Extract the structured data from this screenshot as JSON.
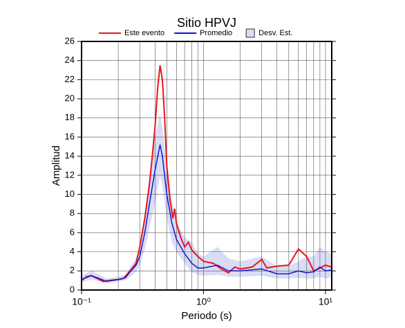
{
  "chart_data": {
    "type": "line",
    "title": "Sitio HPVJ",
    "xlabel": "Periodo (s)",
    "ylabel": "Amplitud",
    "xscale": "log",
    "grid": true,
    "xlim": [
      0.1,
      11.25
    ],
    "ylim": [
      0,
      26
    ],
    "xticks": [
      {
        "value": 0.1,
        "label": "10⁻¹"
      },
      {
        "value": 1,
        "label": "10⁰"
      },
      {
        "value": 10,
        "label": "10¹"
      }
    ],
    "xgrid_minor": [
      0.2,
      0.3,
      0.4,
      0.5,
      0.6,
      0.7,
      0.8,
      0.9,
      2,
      3,
      4,
      5,
      6,
      7,
      8,
      9
    ],
    "yticks": [
      0,
      2,
      4,
      6,
      8,
      10,
      12,
      14,
      16,
      18,
      20,
      22,
      24,
      26
    ],
    "band": {
      "name": "Desv. Est.",
      "color": "#d8dcf5",
      "x": [
        0.1,
        0.12,
        0.14,
        0.16,
        0.2,
        0.23,
        0.25,
        0.28,
        0.3,
        0.33,
        0.36,
        0.4,
        0.44,
        0.46,
        0.5,
        0.55,
        0.6,
        0.7,
        0.8,
        0.9,
        1.0,
        1.3,
        1.6,
        2,
        3,
        4,
        5,
        6,
        7,
        8,
        9,
        10,
        11.25
      ],
      "upper": [
        1.5,
        2.0,
        1.6,
        1.2,
        1.4,
        1.6,
        2.4,
        3.4,
        4.5,
        8,
        12,
        16,
        18.5,
        17,
        13,
        9.5,
        7,
        5.5,
        5,
        3.8,
        3.5,
        4.5,
        3.3,
        3,
        3.5,
        2.5,
        2.5,
        3,
        3.5,
        3.5,
        4.5,
        4,
        3.8
      ],
      "lower": [
        0.8,
        1.1,
        0.9,
        0.7,
        0.9,
        1.0,
        1.4,
        1.9,
        2.6,
        4.2,
        6.5,
        9,
        12,
        11,
        7.5,
        5,
        4,
        2.8,
        1.9,
        1.6,
        1.5,
        1.6,
        1.4,
        1.4,
        1.5,
        1.2,
        1.2,
        1.3,
        1.2,
        1.2,
        1.4,
        1.2,
        1.4
      ]
    },
    "series": [
      {
        "name": "Este evento",
        "color": "#e8141b",
        "x": [
          0.1,
          0.11,
          0.12,
          0.13,
          0.15,
          0.17,
          0.2,
          0.22,
          0.25,
          0.28,
          0.3,
          0.33,
          0.36,
          0.38,
          0.4,
          0.42,
          0.44,
          0.46,
          0.48,
          0.5,
          0.53,
          0.56,
          0.58,
          0.6,
          0.65,
          0.7,
          0.75,
          0.8,
          0.9,
          1.0,
          1.2,
          1.4,
          1.6,
          1.8,
          2.0,
          2.5,
          3.0,
          3.3,
          4,
          5,
          6,
          7,
          8,
          9,
          10,
          11.25
        ],
        "values": [
          1.0,
          1.4,
          1.5,
          1.3,
          0.9,
          1.0,
          1.1,
          1.2,
          2.0,
          2.8,
          4.5,
          7.5,
          11,
          14,
          17,
          21,
          23.5,
          22,
          18,
          13,
          9.5,
          7.5,
          8.5,
          7,
          5.5,
          4.5,
          5,
          4.2,
          3.5,
          3,
          2.8,
          2.2,
          1.8,
          2.4,
          2.2,
          2.4,
          3.2,
          2.3,
          2.5,
          2.6,
          4.3,
          3.5,
          2.0,
          2.3,
          2.6,
          2.4
        ]
      },
      {
        "name": "Promedio",
        "color": "#1414d2",
        "x": [
          0.1,
          0.12,
          0.14,
          0.16,
          0.2,
          0.23,
          0.25,
          0.28,
          0.3,
          0.33,
          0.36,
          0.4,
          0.44,
          0.46,
          0.5,
          0.55,
          0.6,
          0.7,
          0.8,
          0.9,
          1.0,
          1.3,
          1.6,
          2,
          3,
          4,
          5,
          6,
          7,
          8,
          9,
          10,
          11.25
        ],
        "values": [
          1.1,
          1.5,
          1.2,
          0.9,
          1.1,
          1.3,
          1.9,
          2.6,
          3.5,
          6,
          9,
          12.5,
          15.2,
          14,
          10,
          7,
          5.3,
          3.8,
          2.8,
          2.3,
          2.3,
          2.6,
          2.0,
          2.0,
          2.2,
          1.7,
          1.7,
          2.0,
          1.8,
          1.9,
          2.4,
          2.0,
          2.1
        ]
      }
    ]
  }
}
